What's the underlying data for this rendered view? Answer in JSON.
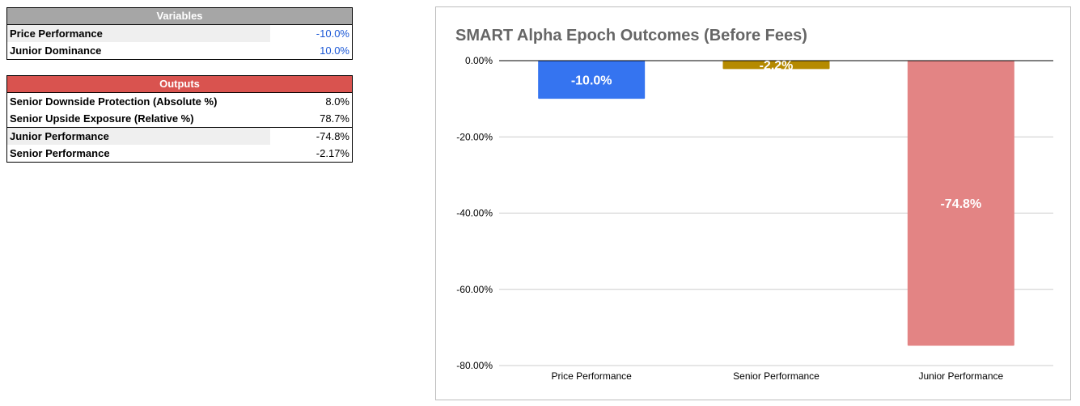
{
  "variables": {
    "header": "Variables",
    "rows": [
      {
        "label": "Price Performance",
        "value": "-10.0%"
      },
      {
        "label": "Junior Dominance",
        "value": "10.0%"
      }
    ]
  },
  "outputs": {
    "header": "Outputs",
    "rows": [
      {
        "label": "Senior Downside Protection (Absolute %)",
        "value": "8.0%"
      },
      {
        "label": "Senior Upside Exposure (Relative %)",
        "value": "78.7%"
      },
      {
        "label": "Junior Performance",
        "value": "-74.8%"
      },
      {
        "label": "Senior Performance",
        "value": "-2.17%"
      }
    ]
  },
  "colors": {
    "variables_header": "#a6a6a6",
    "outputs_header": "#d9534f",
    "variable_value": "#1a57d6"
  },
  "chart_data": {
    "type": "bar",
    "title": "SMART Alpha Epoch Outcomes (Before Fees)",
    "categories": [
      "Price Performance",
      "Senior Performance",
      "Junior Performance"
    ],
    "values": [
      -10.0,
      -2.2,
      -74.8
    ],
    "data_labels": [
      "-10.0%",
      "-2.2%",
      "-74.8%"
    ],
    "bar_colors": [
      "#3574f0",
      "#b58a00",
      "#e38484"
    ],
    "label_colors": [
      "#ffffff",
      "#ffffff",
      "#ffffff"
    ],
    "ylim": [
      -80,
      0
    ],
    "yticks": [
      0,
      -20,
      -40,
      -60,
      -80
    ],
    "ytick_labels": [
      "0.00%",
      "-20.00%",
      "-40.00%",
      "-60.00%",
      "-80.00%"
    ],
    "xlabel": "",
    "ylabel": "",
    "grid": true,
    "legend": "none"
  }
}
